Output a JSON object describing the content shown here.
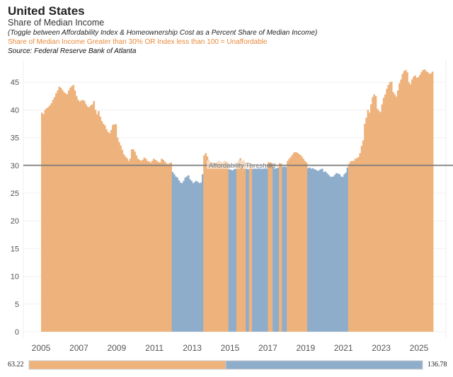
{
  "header": {
    "title": "United States",
    "subtitle": "Share of Median Income",
    "toggle_note": "(Toggle between Affordability Index & Homeownership Cost as a Percent Share of Median Income)",
    "unaffordable_note": "Share of Median Income Greater than 30% OR Index less than 100  = Unaffordable",
    "source": "Source: Federal Reserve Bank of Atlanta"
  },
  "colors": {
    "unaffordable": "#eeb27c",
    "affordable": "#8eadcb",
    "threshold": "#7a7a7a",
    "note": "#e8893a"
  },
  "chart_data": {
    "type": "bar",
    "frequency": "monthly",
    "start": "2005-01",
    "ylim": [
      0,
      48
    ],
    "yticks": [
      0,
      5,
      10,
      15,
      20,
      25,
      30,
      35,
      40,
      45
    ],
    "xticks": [
      "2005",
      "2007",
      "2009",
      "2011",
      "2013",
      "2015",
      "2017",
      "2019",
      "2021",
      "2023",
      "2025"
    ],
    "grid": true,
    "threshold": {
      "value": 30,
      "label": "Affordability Threshold"
    },
    "values": [
      39.5,
      39.2,
      40,
      40.3,
      40.5,
      40.8,
      41.2,
      41.8,
      42.3,
      43,
      43.5,
      44.2,
      44,
      43.6,
      43.2,
      43,
      42.8,
      43.5,
      44,
      44.3,
      44.5,
      43.5,
      42.5,
      41.8,
      41.5,
      41.7,
      41.8,
      41.6,
      41,
      40.6,
      40.5,
      40.8,
      41,
      41.6,
      40,
      39.2,
      39.8,
      38.8,
      38,
      37.5,
      37.2,
      36.5,
      36,
      35.8,
      36.4,
      37.3,
      37.4,
      37.4,
      35,
      34.2,
      33.6,
      32.8,
      32,
      31.6,
      31.3,
      30.8,
      31.2,
      32.9,
      32.9,
      32.5,
      31.8,
      31.2,
      31,
      30.8,
      31,
      31.4,
      31.2,
      30.8,
      30.7,
      30.5,
      30.8,
      31.2,
      31,
      30.8,
      30.6,
      30.5,
      31.2,
      31,
      30.7,
      30.4,
      30.2,
      30.4,
      30.5,
      28.8,
      28.4,
      28,
      27.8,
      27.3,
      26.9,
      26.8,
      27.2,
      27.8,
      28,
      28.2,
      27.5,
      27.2,
      26.8,
      27,
      27.2,
      27,
      26.8,
      26.9,
      28.4,
      31.8,
      32.2,
      31.6,
      30.9,
      30.5,
      30.6,
      30.5,
      30.3,
      30.4,
      30.8,
      30.7,
      30.5,
      30.6,
      30.8,
      30.7,
      30.6,
      29.3,
      29.2,
      29.1,
      29.3,
      29.4,
      30.4,
      30.9,
      31.3,
      30.8,
      30.9,
      30.5,
      29.4,
      29.3,
      30.3,
      30.2,
      29.4,
      29.5,
      29.4,
      29.5,
      29.6,
      29.5,
      29.4,
      29.5,
      29.6,
      29.5,
      30.6,
      30.5,
      30.4,
      29.6,
      29.4,
      29.5,
      29.6,
      30.4,
      30.3,
      29.7,
      29.8,
      29.7,
      30.8,
      31.2,
      31.5,
      31.9,
      32.3,
      32.4,
      32.3,
      32.1,
      31.9,
      31.6,
      31.2,
      30.8,
      30.5,
      29.5,
      29.6,
      29.4,
      29.5,
      29.3,
      29.2,
      29,
      29.1,
      29.3,
      29.4,
      28.8,
      28.9,
      28.6,
      28.3,
      28,
      27.9,
      28,
      28.3,
      28.6,
      28.5,
      28.4,
      28,
      27.9,
      28.4,
      28.7,
      29.6,
      30.3,
      30.7,
      30.8,
      30.8,
      31.2,
      31.3,
      31.5,
      32.2,
      33.5,
      34.5,
      37.5,
      38.6,
      40,
      39.5,
      41,
      42.3,
      42.8,
      42.5,
      40.2,
      39.8,
      39.6,
      41,
      42.2,
      42.8,
      43.8,
      44.5,
      45,
      45.1,
      43.2,
      42.8,
      42.4,
      43.5,
      44.8,
      45.5,
      46.5,
      47,
      47.2,
      46.8,
      45,
      44.6,
      45.5,
      46,
      46.2,
      45.8,
      45.9,
      46.3,
      46.8,
      47.2,
      47.3,
      47,
      46.8,
      46.5,
      46.6,
      46.9
    ]
  },
  "color_legend": {
    "min_label": "63.22",
    "max_label": "136.78",
    "min": 63.22,
    "max": 136.78,
    "midpoint": 100
  }
}
